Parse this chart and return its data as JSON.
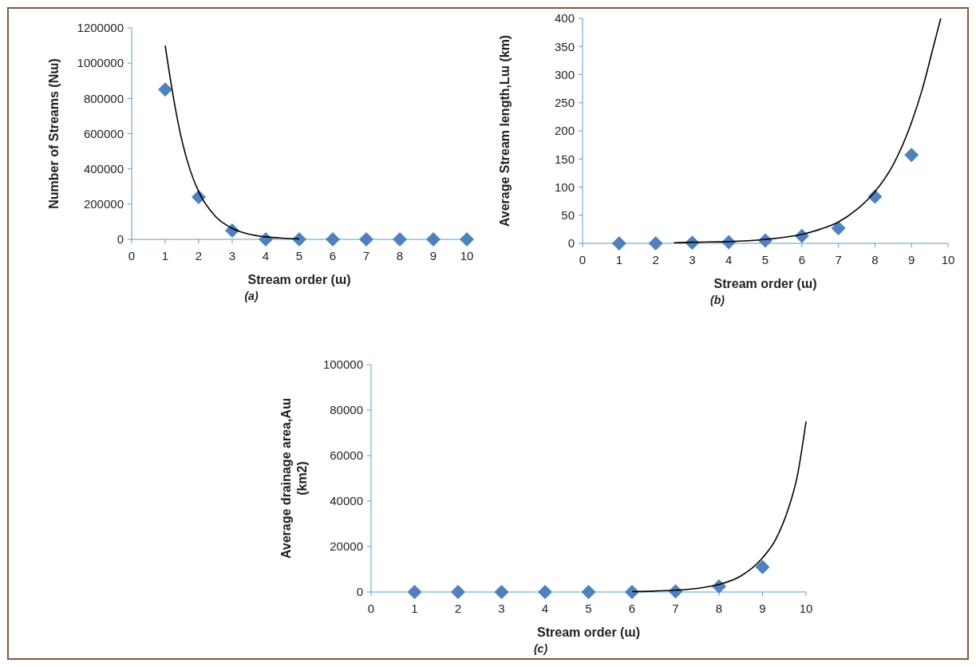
{
  "chart_data": [
    {
      "type": "scatter",
      "xlabel": "Stream order  (ɯ)",
      "ylabel": "Number of  Streams (Nɯ)",
      "annotations": [
        "(a)"
      ],
      "xlim": [
        0,
        10
      ],
      "xticks": [
        0,
        1,
        2,
        3,
        4,
        5,
        6,
        7,
        8,
        9,
        10
      ],
      "ylim": [
        0,
        1200000
      ],
      "yticks": [
        0,
        200000,
        400000,
        600000,
        800000,
        1000000,
        1200000
      ],
      "series": [
        {
          "marker": "diamond",
          "color": "#4f81bd",
          "x": [
            1,
            2,
            3,
            4,
            5,
            6,
            7,
            8,
            9,
            10
          ],
          "values": [
            850000,
            240000,
            50000,
            0,
            0,
            0,
            0,
            0,
            0,
            0
          ]
        },
        {
          "type": "line",
          "marker": "none",
          "line_style": "solid",
          "color": "#000000",
          "x": [
            1,
            1.25,
            1.5,
            1.75,
            2,
            2.5,
            3,
            3.5,
            4,
            4.5,
            5
          ],
          "values": [
            1100000,
            800000,
            560000,
            390000,
            270000,
            130000,
            62000,
            29000,
            14000,
            7000,
            3000
          ]
        }
      ]
    },
    {
      "type": "scatter",
      "xlabel": "Stream order  (ɯ)",
      "ylabel": "Average Stream length,Lɯ (km)",
      "annotations": [
        "(b)"
      ],
      "xlim": [
        0,
        10
      ],
      "xticks": [
        0,
        1,
        2,
        3,
        4,
        5,
        6,
        7,
        8,
        9,
        10
      ],
      "ylim": [
        0,
        400
      ],
      "yticks": [
        0,
        50,
        100,
        150,
        200,
        250,
        300,
        350,
        400
      ],
      "series": [
        {
          "marker": "diamond",
          "color": "#4f81bd",
          "x": [
            1,
            2,
            3,
            4,
            5,
            6,
            7,
            8,
            9
          ],
          "values": [
            0,
            0,
            1,
            2,
            5,
            13,
            27,
            83,
            157
          ]
        },
        {
          "type": "line",
          "marker": "none",
          "line_style": "solid",
          "color": "#000000",
          "x": [
            2.5,
            3,
            4,
            5,
            6,
            6.5,
            7,
            7.5,
            8,
            8.5,
            9,
            9.3,
            9.6,
            9.8
          ],
          "values": [
            1,
            2,
            3,
            7,
            16,
            25,
            38,
            60,
            92,
            140,
            215,
            275,
            350,
            400
          ]
        }
      ]
    },
    {
      "type": "scatter",
      "xlabel": "Stream order  (ɯ)",
      "ylabel": "Average drainage  area,Aɯ\n(km2)",
      "annotations": [
        "(c)"
      ],
      "xlim": [
        0,
        10
      ],
      "xticks": [
        0,
        1,
        2,
        3,
        4,
        5,
        6,
        7,
        8,
        9,
        10
      ],
      "ylim": [
        0,
        100000
      ],
      "yticks": [
        0,
        20000,
        40000,
        60000,
        80000,
        100000
      ],
      "series": [
        {
          "marker": "diamond",
          "color": "#4f81bd",
          "x": [
            1,
            2,
            3,
            4,
            5,
            6,
            7,
            8,
            9
          ],
          "values": [
            0,
            0,
            0,
            0,
            0,
            0,
            300,
            2500,
            11000
          ]
        },
        {
          "type": "line",
          "marker": "none",
          "line_style": "solid",
          "color": "#000000",
          "x": [
            6,
            6.5,
            7,
            7.5,
            8,
            8.5,
            9,
            9.3,
            9.6,
            9.8,
            10
          ],
          "values": [
            200,
            400,
            800,
            1600,
            3300,
            7000,
            15000,
            23000,
            37000,
            51000,
            75000
          ]
        }
      ]
    }
  ]
}
